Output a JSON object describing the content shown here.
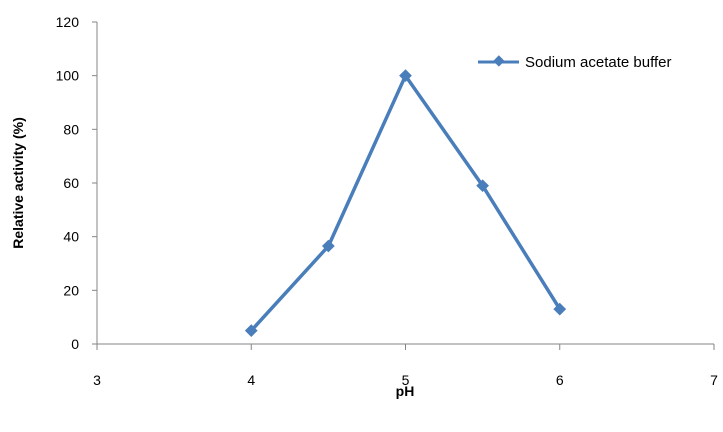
{
  "chart_data": {
    "type": "line",
    "title": "",
    "xlabel": "pH",
    "ylabel": "Relative activity (%)",
    "xlim": [
      3,
      7
    ],
    "ylim": [
      0,
      120
    ],
    "xticks": [
      3,
      4,
      5,
      6,
      7
    ],
    "yticks": [
      0,
      20,
      40,
      60,
      80,
      100,
      120
    ],
    "grid": false,
    "legend_position": "top-right",
    "series": [
      {
        "name": "Sodium acetate buffer",
        "color": "#4A7EBB",
        "marker": "diamond",
        "x": [
          4,
          4.5,
          5,
          5.5,
          6
        ],
        "y": [
          5,
          36.5,
          100,
          59,
          13
        ]
      }
    ]
  }
}
